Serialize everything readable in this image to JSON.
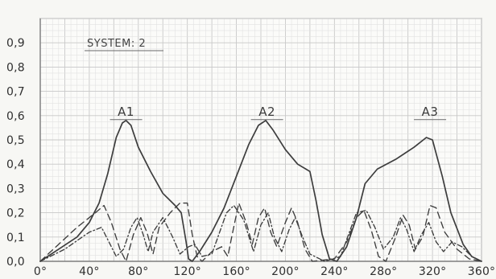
{
  "chart_data": {
    "type": "line",
    "title": "",
    "system_label": "SYSTEM: 2",
    "xlim": [
      0,
      360
    ],
    "ylim": [
      0,
      1.0
    ],
    "x_ticks": [
      {
        "value": 0,
        "label": "0°"
      },
      {
        "value": 40,
        "label": "40°"
      },
      {
        "value": 80,
        "label": "80°"
      },
      {
        "value": 120,
        "label": "120°"
      },
      {
        "value": 160,
        "label": "160°"
      },
      {
        "value": 200,
        "label": "200°"
      },
      {
        "value": 240,
        "label": "240°"
      },
      {
        "value": 280,
        "label": "28o°"
      },
      {
        "value": 320,
        "label": "320°"
      },
      {
        "value": 360,
        "label": "360°"
      }
    ],
    "y_ticks": [
      {
        "value": 0.0,
        "label": "0,0"
      },
      {
        "value": 0.1,
        "label": "0,1"
      },
      {
        "value": 0.2,
        "label": "0,2"
      },
      {
        "value": 0.3,
        "label": "0,3"
      },
      {
        "value": 0.4,
        "label": "0,4"
      },
      {
        "value": 0.5,
        "label": "0,5"
      },
      {
        "value": 0.6,
        "label": "0,6"
      },
      {
        "value": 0.7,
        "label": "0,7"
      },
      {
        "value": 0.8,
        "label": "0,8"
      },
      {
        "value": 0.9,
        "label": "0,9"
      }
    ],
    "annotations": [
      {
        "text": "A1",
        "x": 70,
        "y": 0.6
      },
      {
        "text": "A2",
        "x": 185,
        "y": 0.6
      },
      {
        "text": "A3",
        "x": 318,
        "y": 0.6
      }
    ],
    "series": [
      {
        "style": "solid",
        "points": [
          [
            0,
            0.0
          ],
          [
            15,
            0.05
          ],
          [
            30,
            0.1
          ],
          [
            40,
            0.16
          ],
          [
            48,
            0.24
          ],
          [
            55,
            0.36
          ],
          [
            62,
            0.51
          ],
          [
            67,
            0.57
          ],
          [
            70,
            0.58
          ],
          [
            74,
            0.56
          ],
          [
            80,
            0.47
          ],
          [
            90,
            0.37
          ],
          [
            100,
            0.28
          ],
          [
            110,
            0.23
          ],
          [
            115,
            0.2
          ],
          [
            119,
            0.08
          ],
          [
            121,
            0.01
          ],
          [
            124,
            0.0
          ],
          [
            130,
            0.04
          ],
          [
            140,
            0.12
          ],
          [
            150,
            0.22
          ],
          [
            160,
            0.35
          ],
          [
            170,
            0.48
          ],
          [
            178,
            0.56
          ],
          [
            184,
            0.58
          ],
          [
            190,
            0.54
          ],
          [
            200,
            0.46
          ],
          [
            210,
            0.4
          ],
          [
            220,
            0.37
          ],
          [
            225,
            0.25
          ],
          [
            230,
            0.11
          ],
          [
            236,
            0.01
          ],
          [
            242,
            0.0
          ],
          [
            250,
            0.06
          ],
          [
            258,
            0.18
          ],
          [
            265,
            0.32
          ],
          [
            275,
            0.38
          ],
          [
            290,
            0.42
          ],
          [
            305,
            0.47
          ],
          [
            315,
            0.51
          ],
          [
            320,
            0.5
          ],
          [
            328,
            0.35
          ],
          [
            335,
            0.2
          ],
          [
            345,
            0.07
          ],
          [
            352,
            0.02
          ],
          [
            360,
            0.0
          ]
        ]
      },
      {
        "style": "dashed",
        "points": [
          [
            0,
            0.0
          ],
          [
            15,
            0.07
          ],
          [
            30,
            0.14
          ],
          [
            45,
            0.2
          ],
          [
            52,
            0.23
          ],
          [
            58,
            0.16
          ],
          [
            65,
            0.05
          ],
          [
            70,
            0.0
          ],
          [
            76,
            0.11
          ],
          [
            82,
            0.18
          ],
          [
            87,
            0.12
          ],
          [
            92,
            0.03
          ],
          [
            97,
            0.14
          ],
          [
            106,
            0.2
          ],
          [
            114,
            0.24
          ],
          [
            120,
            0.24
          ],
          [
            124,
            0.11
          ],
          [
            128,
            0.02
          ],
          [
            132,
            0.0
          ],
          [
            140,
            0.04
          ],
          [
            148,
            0.06
          ],
          [
            153,
            0.02
          ],
          [
            157,
            0.12
          ],
          [
            162,
            0.24
          ],
          [
            168,
            0.16
          ],
          [
            173,
            0.07
          ],
          [
            178,
            0.18
          ],
          [
            183,
            0.22
          ],
          [
            188,
            0.12
          ],
          [
            193,
            0.06
          ],
          [
            200,
            0.16
          ],
          [
            205,
            0.22
          ],
          [
            210,
            0.16
          ],
          [
            216,
            0.05
          ],
          [
            222,
            0.0
          ],
          [
            240,
            0.01
          ],
          [
            250,
            0.08
          ],
          [
            258,
            0.18
          ],
          [
            264,
            0.21
          ],
          [
            270,
            0.13
          ],
          [
            276,
            0.02
          ],
          [
            282,
            0.0
          ],
          [
            290,
            0.1
          ],
          [
            296,
            0.19
          ],
          [
            301,
            0.15
          ],
          [
            306,
            0.05
          ],
          [
            312,
            0.1
          ],
          [
            318,
            0.23
          ],
          [
            323,
            0.22
          ],
          [
            330,
            0.12
          ],
          [
            340,
            0.05
          ],
          [
            350,
            0.01
          ],
          [
            360,
            0.0
          ]
        ]
      },
      {
        "style": "dashdot",
        "points": [
          [
            0,
            0.0
          ],
          [
            20,
            0.05
          ],
          [
            40,
            0.12
          ],
          [
            50,
            0.14
          ],
          [
            56,
            0.08
          ],
          [
            62,
            0.02
          ],
          [
            68,
            0.05
          ],
          [
            74,
            0.14
          ],
          [
            79,
            0.18
          ],
          [
            84,
            0.11
          ],
          [
            88,
            0.04
          ],
          [
            92,
            0.12
          ],
          [
            100,
            0.18
          ],
          [
            108,
            0.1
          ],
          [
            114,
            0.03
          ],
          [
            121,
            0.06
          ],
          [
            126,
            0.07
          ],
          [
            132,
            0.02
          ],
          [
            140,
            0.03
          ],
          [
            152,
            0.2
          ],
          [
            158,
            0.23
          ],
          [
            166,
            0.17
          ],
          [
            174,
            0.04
          ],
          [
            180,
            0.15
          ],
          [
            186,
            0.2
          ],
          [
            191,
            0.1
          ],
          [
            197,
            0.04
          ],
          [
            203,
            0.13
          ],
          [
            208,
            0.18
          ],
          [
            214,
            0.1
          ],
          [
            220,
            0.03
          ],
          [
            232,
            0.0
          ],
          [
            245,
            0.02
          ],
          [
            258,
            0.2
          ],
          [
            266,
            0.21
          ],
          [
            273,
            0.14
          ],
          [
            280,
            0.05
          ],
          [
            288,
            0.1
          ],
          [
            294,
            0.18
          ],
          [
            299,
            0.13
          ],
          [
            305,
            0.04
          ],
          [
            311,
            0.11
          ],
          [
            317,
            0.16
          ],
          [
            323,
            0.08
          ],
          [
            329,
            0.04
          ],
          [
            336,
            0.08
          ],
          [
            344,
            0.06
          ],
          [
            352,
            0.02
          ],
          [
            360,
            0.0
          ]
        ]
      }
    ]
  }
}
